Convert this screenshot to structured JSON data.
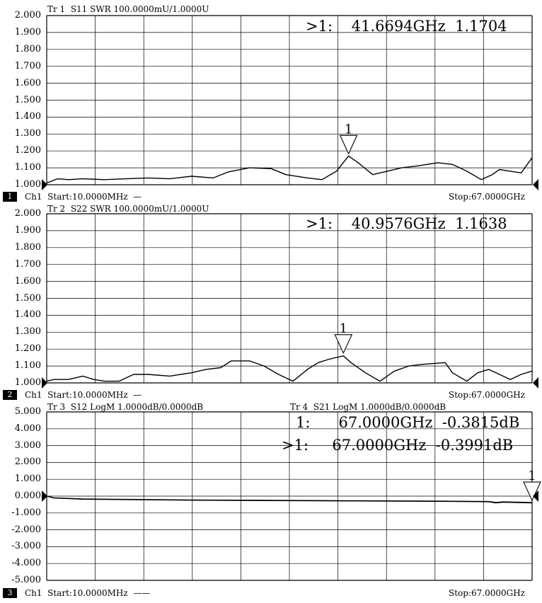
{
  "panels": [
    {
      "id": "1",
      "trace_title": "Tr 1  S11 SWR 100.0000mU/1.0000U",
      "trace_title2": "",
      "y_labels": [
        "2.000",
        "1.900",
        "1.800",
        "1.700",
        "1.600",
        "1.500",
        "1.400",
        "1.300",
        "1.200",
        "1.100",
        "1.000"
      ],
      "markers": [
        {
          "text": ">1:    41.6694GHz  1.1704"
        }
      ],
      "marker_flag": "1",
      "footer_channel_box": "1",
      "footer_left": "Ch1  Start:10.0000MHz  —",
      "footer_right": "Stop:67.0000GHz"
    },
    {
      "id": "2",
      "trace_title": "Tr 2  S22 SWR 100.0000mU/1.0000U",
      "trace_title2": "",
      "y_labels": [
        "2.000",
        "1.900",
        "1.800",
        "1.700",
        "1.600",
        "1.500",
        "1.400",
        "1.300",
        "1.200",
        "1.100",
        "1.000"
      ],
      "markers": [
        {
          "text": ">1:    40.9576GHz  1.1638"
        }
      ],
      "marker_flag": "1",
      "footer_channel_box": "2",
      "footer_left": "Ch1  Start:10.0000MHz  —",
      "footer_right": "Stop:67.0000GHz"
    },
    {
      "id": "3",
      "trace_title": "Tr 3  S12 LogM 1.0000dB/0.0000dB",
      "trace_title2": "Tr 4  S21 LogM 1.0000dB/0.0000dB",
      "y_labels": [
        "5.000",
        "4.000",
        "3.000",
        "2.000",
        "1.000",
        "0.000",
        "-1.000",
        "-2.000",
        "-3.000",
        "-4.000",
        "-5.000"
      ],
      "markers": [
        {
          "text": "1:      67.0000GHz  -0.3815dB"
        },
        {
          "text": ">1:     67.0000GHz  -0.3991dB"
        }
      ],
      "marker_flag": "1",
      "footer_channel_box": "3",
      "footer_left": "Ch1  Start:10.0000MHz  ——",
      "footer_right": "Stop:67.0000GHz"
    }
  ],
  "chart_data": [
    {
      "type": "line",
      "title": "Tr 1  S11 SWR 100.0000mU/1.0000U",
      "xlabel": "",
      "ylabel": "",
      "xlim": [
        0.01,
        67.0
      ],
      "ylim": [
        1.0,
        2.0
      ],
      "grid": true,
      "series": [
        {
          "name": "S11",
          "x": [
            0.01,
            1.5,
            3,
            5,
            8,
            11,
            14,
            17,
            20,
            23,
            25,
            28,
            31,
            33,
            36,
            38,
            40,
            41.67,
            43,
            45,
            47,
            49,
            51,
            54,
            56,
            58,
            60,
            61.5,
            62.5,
            64,
            65.5,
            67
          ],
          "y": [
            1.01,
            1.035,
            1.03,
            1.035,
            1.03,
            1.035,
            1.04,
            1.035,
            1.05,
            1.04,
            1.075,
            1.1,
            1.095,
            1.06,
            1.04,
            1.03,
            1.08,
            1.17,
            1.13,
            1.06,
            1.08,
            1.1,
            1.11,
            1.13,
            1.12,
            1.08,
            1.03,
            1.06,
            1.09,
            1.08,
            1.07,
            1.16
          ],
          "marker": {
            "x": 41.6694,
            "y": 1.1704
          }
        }
      ]
    },
    {
      "type": "line",
      "title": "Tr 2  S22 SWR 100.0000mU/1.0000U",
      "xlabel": "",
      "ylabel": "",
      "xlim": [
        0.01,
        67.0
      ],
      "ylim": [
        1.0,
        2.0
      ],
      "grid": true,
      "series": [
        {
          "name": "S22",
          "x": [
            0.01,
            1,
            3,
            5,
            6.5,
            8,
            10,
            12,
            14,
            17,
            20,
            22,
            24,
            25.5,
            28,
            30,
            32,
            34,
            36,
            37.5,
            39,
            40.96,
            42,
            44,
            46,
            48,
            50,
            52,
            55,
            56,
            58,
            59.5,
            61,
            62.5,
            64,
            65.5,
            67
          ],
          "y": [
            1.01,
            1.02,
            1.02,
            1.04,
            1.02,
            1.01,
            1.01,
            1.05,
            1.05,
            1.04,
            1.06,
            1.08,
            1.09,
            1.13,
            1.13,
            1.1,
            1.05,
            1.01,
            1.08,
            1.12,
            1.14,
            1.16,
            1.12,
            1.06,
            1.01,
            1.07,
            1.1,
            1.11,
            1.12,
            1.06,
            1.01,
            1.06,
            1.08,
            1.05,
            1.02,
            1.05,
            1.07
          ],
          "marker": {
            "x": 40.9576,
            "y": 1.1638
          }
        }
      ]
    },
    {
      "type": "line",
      "title": "Tr 3  S12 LogM 1.0000dB/0.0000dB",
      "xlabel": "",
      "ylabel": "",
      "xlim": [
        0.01,
        67.0
      ],
      "ylim": [
        -5.0,
        5.0
      ],
      "grid": true,
      "series": [
        {
          "name": "S12",
          "x": [
            0.01,
            1,
            5,
            20,
            40,
            55,
            61,
            62,
            63,
            67
          ],
          "y": [
            0.0,
            -0.1,
            -0.17,
            -0.23,
            -0.27,
            -0.3,
            -0.32,
            -0.38,
            -0.34,
            -0.3815
          ],
          "marker": {
            "x": 67.0,
            "y": -0.3815
          }
        },
        {
          "name": "S21",
          "x": [
            0.01,
            1,
            5,
            20,
            40,
            55,
            61,
            62,
            63,
            67
          ],
          "y": [
            0.0,
            -0.11,
            -0.18,
            -0.24,
            -0.28,
            -0.31,
            -0.33,
            -0.4,
            -0.36,
            -0.3991
          ],
          "marker": {
            "x": 67.0,
            "y": -0.3991
          }
        }
      ]
    }
  ]
}
